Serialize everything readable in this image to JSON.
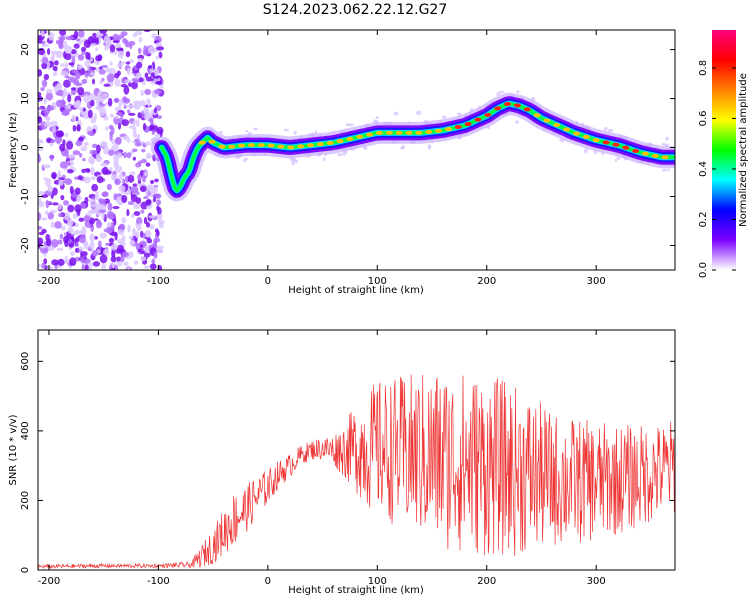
{
  "title": "S124.2023.062.22.12.G27",
  "chart_data": [
    {
      "type": "heatmap",
      "xlabel": "Height of straight line (km)",
      "ylabel": "Frequency (Hz)",
      "xlim": [
        -210,
        372
      ],
      "ylim": [
        -25,
        24
      ],
      "x_ticks": [
        "-200",
        "-100",
        "0",
        "100",
        "200",
        "300"
      ],
      "y_ticks": [
        "-20",
        "-10",
        "0",
        "10",
        "20"
      ],
      "colorbar": {
        "label": "Normalized spectral amplitude",
        "range": [
          0,
          0.95
        ],
        "ticks": [
          "0.0",
          "0.2",
          "0.4",
          "0.6",
          "0.8"
        ],
        "colors": [
          "#ffffff",
          "#7b00ff",
          "#0000ff",
          "#00ffff",
          "#00ff00",
          "#ffff00",
          "#ff8000",
          "#ff0000",
          "#ff0080"
        ]
      },
      "noise_region_x": [
        -210,
        -97
      ],
      "ridge": {
        "x": [
          -97,
          -92,
          -88,
          -84,
          -80,
          -76,
          -72,
          -68,
          -64,
          -60,
          -55,
          -50,
          -40,
          -20,
          0,
          20,
          40,
          60,
          80,
          100,
          120,
          140,
          160,
          180,
          200,
          210,
          220,
          230,
          240,
          250,
          260,
          280,
          300,
          320,
          340,
          360,
          372
        ],
        "y": [
          0,
          -2,
          -6,
          -9,
          -8,
          -6,
          -5,
          -2,
          0,
          1,
          2,
          1,
          0,
          0.5,
          0.5,
          0,
          0.5,
          1,
          2,
          3,
          3,
          3,
          3.5,
          4.5,
          6.5,
          8,
          9,
          8.5,
          7.5,
          6,
          5,
          3,
          1.5,
          0.5,
          -1,
          -2,
          -2
        ]
      }
    },
    {
      "type": "line",
      "xlabel": "Height of straight line (km)",
      "ylabel": "SNR (10 * v/v)",
      "xlim": [
        -210,
        372
      ],
      "ylim": [
        0,
        690
      ],
      "x_ticks": [
        "-200",
        "-100",
        "0",
        "100",
        "200",
        "300"
      ],
      "y_ticks": [
        "0",
        "200",
        "400",
        "600"
      ],
      "color": "#ee3333",
      "series": [
        {
          "x": [
            -210,
            -150,
            -100,
            -70,
            -60,
            -50,
            -40,
            -30,
            -20,
            -10,
            0,
            10,
            20,
            30,
            40,
            50,
            60,
            70,
            80,
            90,
            100,
            120,
            140,
            160,
            180,
            200,
            220,
            240,
            260,
            280,
            300,
            320,
            340,
            360,
            372
          ],
          "y": [
            10,
            12,
            12,
            15,
            40,
            70,
            110,
            150,
            175,
            210,
            240,
            275,
            300,
            330,
            345,
            350,
            345,
            345,
            350,
            350,
            350,
            340,
            330,
            320,
            310,
            300,
            290,
            275,
            260,
            255,
            255,
            260,
            270,
            285,
            300
          ],
          "spread": [
            5,
            5,
            5,
            8,
            30,
            45,
            60,
            70,
            60,
            55,
            45,
            35,
            30,
            25,
            25,
            30,
            40,
            70,
            110,
            150,
            170,
            190,
            210,
            230,
            230,
            230,
            220,
            200,
            170,
            160,
            150,
            140,
            130,
            120,
            120
          ]
        }
      ]
    }
  ]
}
